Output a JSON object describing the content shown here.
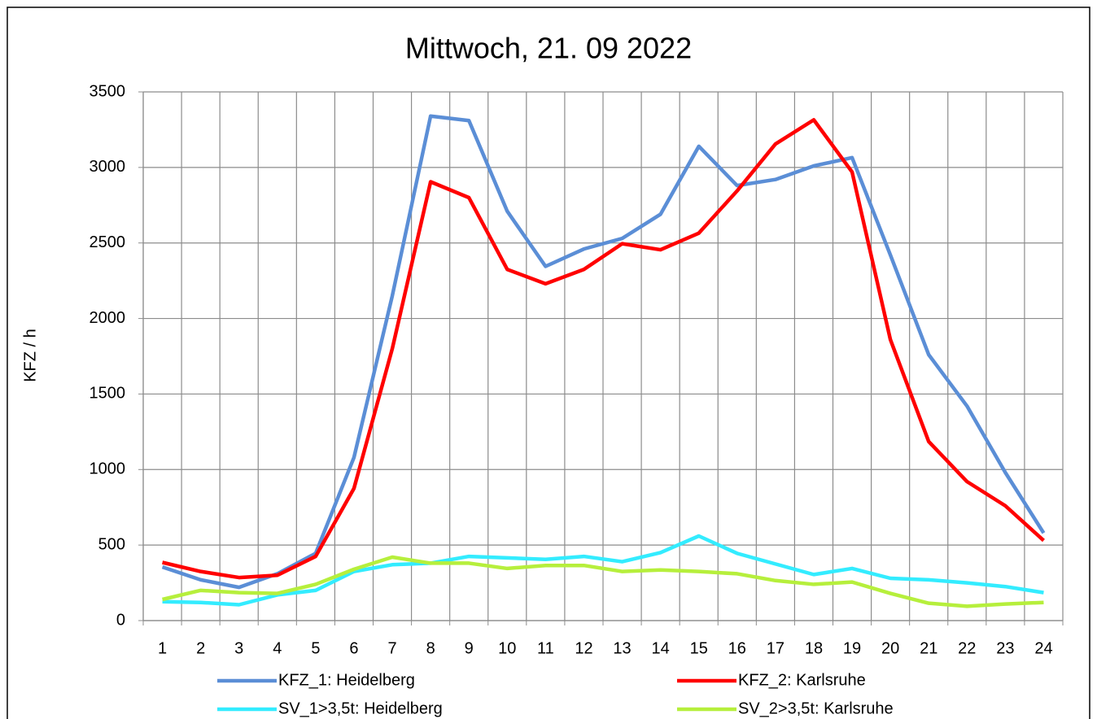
{
  "chart_data": {
    "type": "line",
    "title": "Mittwoch, 21. 09 2022",
    "y_label": "KFZ / h",
    "categories": [
      "1",
      "2",
      "3",
      "4",
      "5",
      "6",
      "7",
      "8",
      "9",
      "10",
      "11",
      "12",
      "13",
      "14",
      "15",
      "16",
      "17",
      "18",
      "19",
      "20",
      "21",
      "22",
      "23",
      "24"
    ],
    "series": [
      {
        "name": "KFZ_1: Heidelberg",
        "color": "#5b8ed6",
        "values": [
          355,
          270,
          220,
          310,
          445,
          1080,
          2150,
          3340,
          3310,
          2710,
          2345,
          2460,
          2530,
          2690,
          3140,
          2880,
          2920,
          3010,
          3065,
          2420,
          1760,
          1420,
          980,
          580
        ]
      },
      {
        "name": "KFZ_2: Karlsruhe",
        "color": "#ff0000",
        "values": [
          385,
          325,
          285,
          300,
          425,
          875,
          1800,
          2905,
          2800,
          2325,
          2230,
          2325,
          2495,
          2455,
          2565,
          2845,
          3155,
          3315,
          2970,
          1860,
          1185,
          920,
          760,
          530
        ]
      },
      {
        "name": "SV_1>3,5t: Heidelberg",
        "color": "#33ecff",
        "values": [
          125,
          120,
          105,
          170,
          200,
          325,
          370,
          380,
          425,
          415,
          405,
          425,
          390,
          450,
          560,
          445,
          375,
          305,
          345,
          280,
          270,
          250,
          225,
          185
        ]
      },
      {
        "name": "SV_2>3,5t: Karlsruhe",
        "color": "#b6ef3c",
        "values": [
          140,
          200,
          185,
          180,
          240,
          340,
          420,
          380,
          380,
          345,
          365,
          365,
          325,
          335,
          325,
          310,
          265,
          240,
          255,
          180,
          115,
          95,
          110,
          120
        ]
      }
    ],
    "ylim": [
      0,
      3500
    ],
    "yticks": [
      0,
      500,
      1000,
      1500,
      2000,
      2500,
      3000,
      3500
    ],
    "grid": true,
    "legend": "bottom"
  }
}
